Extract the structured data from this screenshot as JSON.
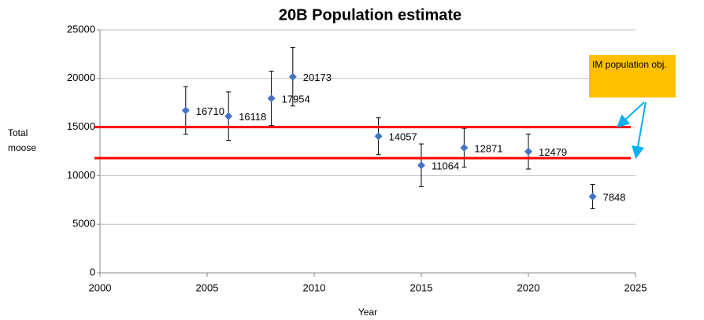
{
  "chart_data": {
    "type": "scatter",
    "title": "20B Population estimate",
    "x_label": "Year",
    "y_label": "Total moose",
    "x": [
      2004,
      2006,
      2008,
      2009,
      2013,
      2015,
      2017,
      2020,
      2023
    ],
    "values": [
      16710,
      16118,
      17954,
      20173,
      14057,
      11064,
      12871,
      12479,
      7848
    ],
    "errors": [
      2450,
      2500,
      2800,
      3000,
      1900,
      2200,
      2000,
      1800,
      1250
    ],
    "color": "#4472c4",
    "xlim": [
      2000,
      2025
    ],
    "xticks": [
      2000,
      2005,
      2010,
      2015,
      2020,
      2025
    ],
    "ylim": [
      0,
      25000
    ],
    "yticks": [
      0,
      5000,
      10000,
      15000,
      20000,
      25000
    ],
    "grid": true,
    "reference_lines": [
      15000,
      11800
    ],
    "reference_color": "#ff0000",
    "annotation": "IM population obj."
  }
}
